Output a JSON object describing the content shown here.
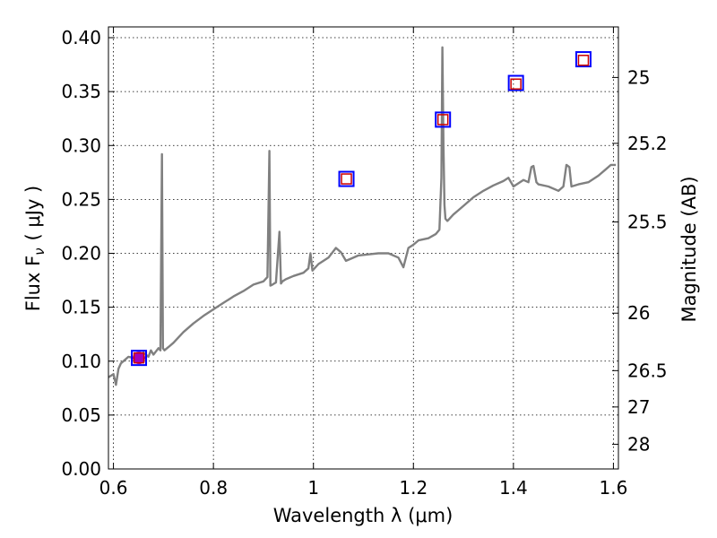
{
  "chart_data": {
    "type": "line",
    "xlabel": "Wavelength  λ (μm)",
    "ylabel": "Flux  F",
    "ylabel_sub": "ν",
    "ylabel_unit": "(  μJy )",
    "ylabel_right": "Magnitude (AB)",
    "xlim": [
      0.59,
      1.61
    ],
    "ylim": [
      0.0,
      0.41
    ],
    "grid": true,
    "x_ticks": [
      0.6,
      0.8,
      1.0,
      1.2,
      1.4,
      1.6
    ],
    "x_tick_labels": [
      "0.6",
      "0.8",
      "1",
      "1.2",
      "1.4",
      "1.6"
    ],
    "y_ticks": [
      0.0,
      0.05,
      0.1,
      0.15,
      0.2,
      0.25,
      0.3,
      0.35,
      0.4
    ],
    "y_tick_labels": [
      "0.00",
      "0.05",
      "0.10",
      "0.15",
      "0.20",
      "0.25",
      "0.30",
      "0.35",
      "0.40"
    ],
    "right_ticks": [
      {
        "label": "25",
        "flux": 0.3631
      },
      {
        "label": "25.2",
        "flux": 0.302
      },
      {
        "label": "25.5",
        "flux": 0.2291
      },
      {
        "label": "26",
        "flux": 0.1445
      },
      {
        "label": "26.5",
        "flux": 0.0912
      },
      {
        "label": "27",
        "flux": 0.0575
      },
      {
        "label": "28",
        "flux": 0.0229
      }
    ],
    "series": [
      {
        "kind": "spectrum",
        "color": "#808080",
        "x": [
          0.59,
          0.6,
          0.605,
          0.61,
          0.615,
          0.62,
          0.63,
          0.64,
          0.65,
          0.655,
          0.66,
          0.67,
          0.675,
          0.68,
          0.69,
          0.694,
          0.697,
          0.699,
          0.702,
          0.71,
          0.72,
          0.74,
          0.76,
          0.78,
          0.8,
          0.82,
          0.84,
          0.86,
          0.88,
          0.9,
          0.908,
          0.912,
          0.914,
          0.918,
          0.925,
          0.932,
          0.935,
          0.938,
          0.945,
          0.96,
          0.98,
          0.99,
          0.994,
          0.998,
          1.01,
          1.03,
          1.045,
          1.055,
          1.065,
          1.075,
          1.09,
          1.11,
          1.13,
          1.15,
          1.17,
          1.18,
          1.19,
          1.2,
          1.21,
          1.23,
          1.245,
          1.252,
          1.256,
          1.258,
          1.26,
          1.262,
          1.264,
          1.268,
          1.28,
          1.3,
          1.32,
          1.34,
          1.36,
          1.38,
          1.39,
          1.4,
          1.42,
          1.43,
          1.436,
          1.44,
          1.446,
          1.45,
          1.47,
          1.49,
          1.5,
          1.506,
          1.512,
          1.516,
          1.53,
          1.55,
          1.57,
          1.585,
          1.595,
          1.605
        ],
        "y": [
          0.085,
          0.088,
          0.078,
          0.093,
          0.098,
          0.1,
          0.104,
          0.103,
          0.105,
          0.102,
          0.108,
          0.104,
          0.11,
          0.106,
          0.112,
          0.11,
          0.292,
          0.112,
          0.11,
          0.113,
          0.117,
          0.127,
          0.135,
          0.142,
          0.148,
          0.154,
          0.16,
          0.165,
          0.171,
          0.174,
          0.178,
          0.295,
          0.17,
          0.171,
          0.173,
          0.22,
          0.172,
          0.174,
          0.176,
          0.179,
          0.182,
          0.186,
          0.2,
          0.184,
          0.19,
          0.196,
          0.205,
          0.201,
          0.193,
          0.195,
          0.198,
          0.199,
          0.2,
          0.2,
          0.196,
          0.187,
          0.205,
          0.208,
          0.212,
          0.214,
          0.218,
          0.222,
          0.27,
          0.391,
          0.3,
          0.245,
          0.232,
          0.23,
          0.236,
          0.244,
          0.252,
          0.258,
          0.263,
          0.267,
          0.27,
          0.262,
          0.268,
          0.266,
          0.28,
          0.281,
          0.266,
          0.264,
          0.262,
          0.258,
          0.262,
          0.282,
          0.28,
          0.262,
          0.264,
          0.266,
          0.272,
          0.278,
          0.282,
          0.282
        ]
      },
      {
        "kind": "photometry-blue-squares",
        "color": "#0000ff",
        "points": [
          {
            "x": 0.651,
            "y": 0.103
          },
          {
            "x": 1.066,
            "y": 0.269
          },
          {
            "x": 1.259,
            "y": 0.324
          },
          {
            "x": 1.405,
            "y": 0.358
          },
          {
            "x": 1.54,
            "y": 0.38
          }
        ]
      },
      {
        "kind": "photometry-red-squares",
        "color": "#cc0000",
        "points": [
          {
            "x": 0.651,
            "y": 0.103
          },
          {
            "x": 1.066,
            "y": 0.269
          },
          {
            "x": 1.259,
            "y": 0.324
          },
          {
            "x": 1.405,
            "y": 0.357
          },
          {
            "x": 1.54,
            "y": 0.379
          }
        ]
      },
      {
        "kind": "measured-point",
        "color": "#a000c0",
        "points": [
          {
            "x": 0.651,
            "y": 0.103
          }
        ]
      }
    ]
  }
}
